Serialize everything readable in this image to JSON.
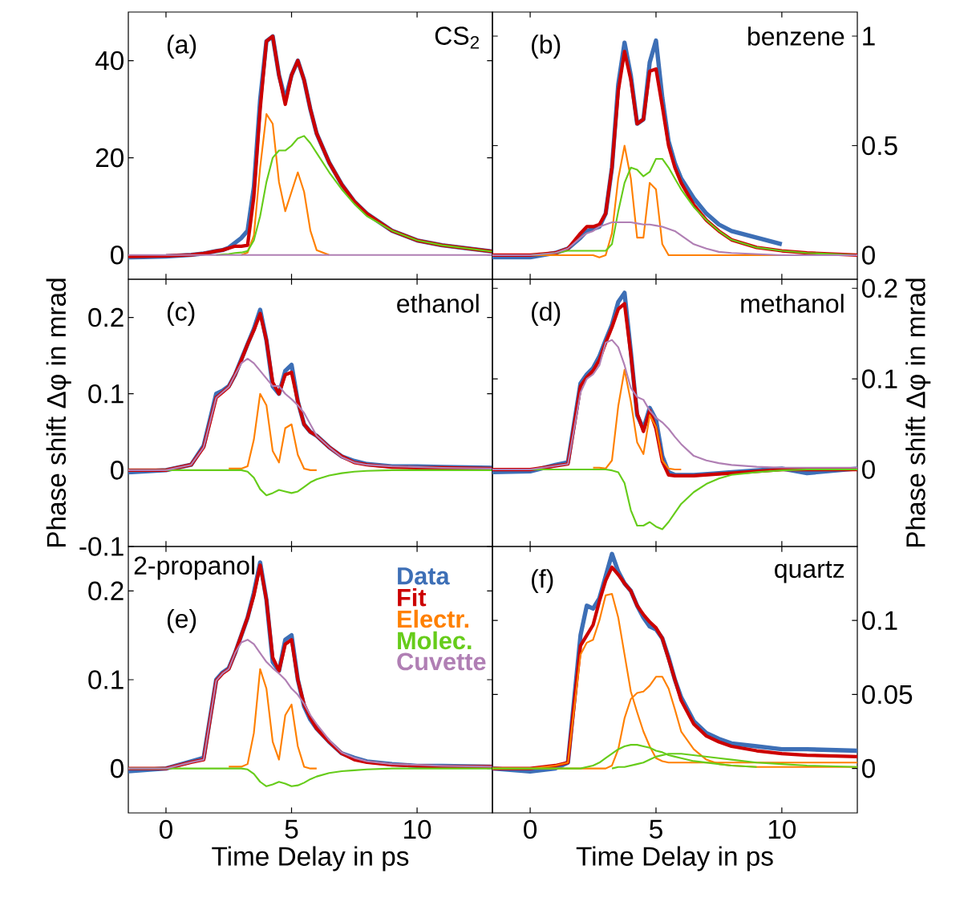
{
  "chart_data": [
    {
      "type": "line",
      "annotations": [
        "(a)",
        "CS$_{2}$"
      ],
      "x": [
        -1.5,
        0,
        1,
        1.5,
        2,
        2.25,
        2.5,
        2.75,
        3,
        3.25,
        3.5,
        3.75,
        4,
        4.25,
        4.5,
        4.75,
        5,
        5.25,
        5.5,
        5.75,
        6,
        6.5,
        7,
        7.5,
        8,
        9,
        10,
        11,
        13
      ],
      "xlim": [
        -1.5,
        13
      ],
      "xticks": [
        0,
        5,
        10
      ],
      "ylim": [
        -5,
        50
      ],
      "yticks": [
        0,
        20,
        40
      ],
      "tick_labels": "y",
      "series": [
        {
          "color": "#3d6fb6",
          "values": [
            -0.5,
            -0.3,
            0,
            0.3,
            0.8,
            1,
            1.5,
            2.5,
            3.5,
            5,
            14,
            32,
            44,
            45,
            37,
            32,
            37,
            40,
            36,
            30,
            25,
            19,
            14.5,
            11,
            8.5,
            5,
            3,
            2,
            0.7
          ]
        },
        {
          "color": "#cc0000",
          "values": [
            -0.3,
            -0.2,
            0,
            0.3,
            0.8,
            1,
            1.4,
            1.8,
            1.8,
            2,
            12,
            30,
            44,
            45,
            37,
            31,
            37,
            40,
            36,
            30,
            25,
            19,
            14.5,
            11,
            8.5,
            5,
            3,
            2,
            0.7
          ]
        },
        {
          "color": "#ff8000",
          "values": [
            null,
            null,
            null,
            null,
            null,
            null,
            null,
            null,
            0,
            0.5,
            4,
            18,
            29,
            27,
            15,
            9,
            13,
            17,
            13,
            5,
            1,
            0,
            null,
            null,
            null,
            null,
            null,
            null,
            null
          ]
        },
        {
          "color": "#66cc1a",
          "values": [
            null,
            null,
            null,
            null,
            0,
            0.1,
            0.2,
            0.4,
            0.5,
            0.8,
            3,
            8,
            15,
            20,
            21.5,
            21.5,
            22.5,
            24,
            24.5,
            23,
            21,
            17,
            13.5,
            10.5,
            8,
            5,
            3,
            2,
            0.7
          ]
        },
        {
          "color": "#b07fb4",
          "values": [
            0,
            0,
            0,
            0,
            0,
            0,
            0,
            0,
            0,
            0,
            0,
            0,
            0,
            0,
            0,
            0,
            0,
            0,
            0,
            0,
            0,
            0,
            0,
            0,
            0,
            0,
            0,
            0,
            0
          ]
        }
      ]
    },
    {
      "type": "line",
      "annotations": [
        "(b)",
        "benzene"
      ],
      "x": [
        -1.5,
        0,
        1,
        1.5,
        2,
        2.25,
        2.5,
        2.75,
        3,
        3.25,
        3.5,
        3.75,
        4,
        4.25,
        4.5,
        4.75,
        5,
        5.25,
        5.5,
        5.75,
        6,
        6.5,
        7,
        7.5,
        8,
        9,
        10,
        11,
        13
      ],
      "xlim": [
        -1.5,
        13
      ],
      "xticks": [
        0,
        5,
        10
      ],
      "ylim": [
        -0.11,
        1.11
      ],
      "yticks": [
        0,
        0.5,
        1
      ],
      "tick_labels": "y",
      "series": [
        {
          "color": "#3d6fb6",
          "values": [
            -0.01,
            -0.01,
            0.01,
            0.03,
            0.08,
            0.11,
            0.12,
            0.13,
            0.19,
            0.4,
            0.78,
            0.97,
            0.82,
            0.6,
            0.62,
            0.88,
            0.98,
            0.72,
            0.52,
            0.42,
            0.35,
            0.26,
            0.19,
            0.14,
            0.11,
            0.08,
            0.05,
            null,
            null
          ]
        },
        {
          "color": "#cc0000",
          "values": [
            0,
            0,
            0.01,
            0.03,
            0.1,
            0.13,
            0.13,
            0.14,
            0.19,
            0.4,
            0.75,
            0.93,
            0.8,
            0.6,
            0.62,
            0.84,
            0.85,
            0.68,
            0.5,
            0.4,
            0.33,
            0.23,
            0.16,
            0.11,
            0.07,
            0.035,
            0.02,
            0.01,
            0
          ]
        },
        {
          "color": "#ff8000",
          "values": [
            0,
            0,
            0,
            0,
            0,
            0,
            0,
            -0.01,
            0,
            0.1,
            0.35,
            0.5,
            0.35,
            0.08,
            0.08,
            0.33,
            0.3,
            0.05,
            0,
            0,
            0,
            0,
            0,
            0,
            0,
            0,
            0,
            0,
            0
          ]
        },
        {
          "color": "#66cc1a",
          "values": [
            0,
            0,
            0.01,
            0.02,
            0.02,
            0.02,
            0.02,
            0.02,
            0.02,
            0.05,
            0.2,
            0.33,
            0.4,
            0.39,
            0.36,
            0.38,
            0.44,
            0.44,
            0.4,
            0.35,
            0.3,
            0.22,
            0.16,
            0.11,
            0.07,
            0.035,
            0.02,
            0.01,
            0
          ]
        },
        {
          "color": "#b07fb4",
          "values": [
            0,
            0,
            0.01,
            0.03,
            0.08,
            0.1,
            0.11,
            0.13,
            0.14,
            0.15,
            0.15,
            0.15,
            0.15,
            0.145,
            0.14,
            0.14,
            0.135,
            0.13,
            0.12,
            0.11,
            0.09,
            0.05,
            0.03,
            0.015,
            0.01,
            0.005,
            0,
            0,
            0
          ]
        }
      ]
    },
    {
      "type": "line",
      "annotations": [
        "(c)",
        "ethanol"
      ],
      "ylabel": "Phase shift Δφ in mrad",
      "x": [
        -1.5,
        0,
        1,
        1.5,
        2,
        2.25,
        2.5,
        2.75,
        3,
        3.25,
        3.5,
        3.75,
        4,
        4.25,
        4.5,
        4.75,
        5,
        5.25,
        5.5,
        5.75,
        6,
        6.5,
        7,
        7.5,
        8,
        9,
        10,
        11,
        13
      ],
      "xlim": [
        -1.5,
        13
      ],
      "xticks": [
        0,
        5,
        10
      ],
      "ylim": [
        -0.1,
        0.25
      ],
      "yticks": [
        -0.1,
        0,
        0.1,
        0.2
      ],
      "tick_labels": "y",
      "series": [
        {
          "color": "#3d6fb6",
          "values": [
            -0.003,
            0,
            0.007,
            0.032,
            0.1,
            0.104,
            0.11,
            0.125,
            0.145,
            0.165,
            0.185,
            0.21,
            0.17,
            0.11,
            0.1,
            0.13,
            0.138,
            0.09,
            0.06,
            0.05,
            0.045,
            0.03,
            0.018,
            0.012,
            0.008,
            0.005,
            0.005,
            0.004,
            0.003
          ]
        },
        {
          "color": "#cc0000",
          "values": [
            0,
            0,
            0.007,
            0.03,
            0.095,
            0.102,
            0.109,
            0.125,
            0.144,
            0.165,
            0.183,
            0.205,
            0.17,
            0.115,
            0.1,
            0.125,
            0.128,
            0.09,
            0.06,
            0.05,
            0.045,
            0.03,
            0.018,
            0.01,
            0.007,
            0.004,
            0.003,
            0.003,
            0.002
          ]
        },
        {
          "color": "#ff8000",
          "values": [
            null,
            null,
            null,
            null,
            null,
            null,
            0.002,
            0.002,
            0.002,
            0.005,
            0.04,
            0.1,
            0.085,
            0.025,
            0.01,
            0.055,
            0.06,
            0.02,
            0.002,
            0,
            0,
            null,
            null,
            null,
            null,
            null,
            null,
            null,
            null
          ]
        },
        {
          "color": "#66cc1a",
          "values": [
            0,
            0,
            0,
            0,
            0,
            0,
            0,
            0,
            0,
            -0.002,
            -0.01,
            -0.025,
            -0.033,
            -0.03,
            -0.026,
            -0.028,
            -0.03,
            -0.028,
            -0.022,
            -0.016,
            -0.012,
            -0.007,
            -0.004,
            -0.002,
            -0.001,
            0,
            0,
            0,
            0
          ]
        },
        {
          "color": "#b07fb4",
          "values": [
            0,
            0,
            0.007,
            0.03,
            0.095,
            0.102,
            0.109,
            0.125,
            0.14,
            0.146,
            0.14,
            0.13,
            0.12,
            0.11,
            0.11,
            0.1,
            0.093,
            0.085,
            0.075,
            0.06,
            0.045,
            0.03,
            0.017,
            0.01,
            0.007,
            0.005,
            0.004,
            0.003,
            0.002
          ]
        }
      ]
    },
    {
      "type": "line",
      "annotations": [
        "(d)",
        "methanol"
      ],
      "ylabel": "Phase shift Δφ in mrad",
      "x": [
        -1.5,
        0,
        1,
        1.5,
        2,
        2.25,
        2.5,
        2.75,
        3,
        3.25,
        3.5,
        3.75,
        4,
        4.25,
        4.5,
        4.75,
        5,
        5.25,
        5.5,
        5.75,
        6,
        6.5,
        7,
        7.5,
        8,
        9,
        10,
        11,
        13
      ],
      "xlim": [
        -1.5,
        13
      ],
      "xticks": [
        0,
        5,
        10
      ],
      "ylim": [
        -0.085,
        0.21
      ],
      "yticks": [
        0,
        0.1,
        0.2
      ],
      "tick_labels": "y",
      "series": [
        {
          "color": "#3d6fb6",
          "values": [
            -0.003,
            -0.002,
            0.005,
            0.008,
            0.095,
            0.105,
            0.112,
            0.125,
            0.143,
            0.16,
            0.185,
            0.195,
            0.13,
            0.06,
            0.045,
            0.068,
            0.055,
            0.015,
            -0.003,
            -0.006,
            -0.006,
            -0.006,
            -0.005,
            -0.004,
            -0.003,
            -0.001,
            0.001,
            -0.004,
            0.001
          ]
        },
        {
          "color": "#cc0000",
          "values": [
            0,
            0,
            0.004,
            0.006,
            0.092,
            0.102,
            0.109,
            0.121,
            0.14,
            0.157,
            0.177,
            0.183,
            0.127,
            0.062,
            0.042,
            0.065,
            0.045,
            0.009,
            -0.006,
            -0.007,
            -0.007,
            -0.007,
            -0.006,
            -0.005,
            -0.004,
            -0.002,
            0,
            0,
            0
          ]
        },
        {
          "color": "#ff8000",
          "values": [
            null,
            null,
            null,
            null,
            null,
            null,
            0.002,
            0.002,
            0.001,
            0.01,
            0.07,
            0.11,
            0.075,
            0.03,
            0.017,
            0.06,
            0.047,
            0.01,
            0.001,
            0,
            0,
            null,
            null,
            null,
            null,
            null,
            null,
            null,
            null
          ]
        },
        {
          "color": "#66cc1a",
          "values": [
            0,
            0,
            0,
            0,
            0,
            0,
            0,
            0,
            0,
            -0.001,
            -0.003,
            -0.015,
            -0.045,
            -0.062,
            -0.062,
            -0.058,
            -0.063,
            -0.066,
            -0.058,
            -0.048,
            -0.038,
            -0.025,
            -0.016,
            -0.01,
            -0.006,
            -0.003,
            -0.001,
            0,
            0
          ]
        },
        {
          "color": "#b07fb4",
          "values": [
            0,
            0,
            0.004,
            0.006,
            0.085,
            0.1,
            0.105,
            0.115,
            0.14,
            0.143,
            0.135,
            0.115,
            0.09,
            0.08,
            0.077,
            0.065,
            0.057,
            0.052,
            0.045,
            0.036,
            0.028,
            0.015,
            0.01,
            0.007,
            0.005,
            0.003,
            0.002,
            0.002,
            0.002
          ]
        }
      ]
    },
    {
      "type": "line",
      "annotations": [
        "2-propanol",
        "(e)"
      ],
      "xlabel": "Time Delay in ps",
      "legend": "top right",
      "x": [
        -1.5,
        0,
        1,
        1.5,
        2,
        2.25,
        2.5,
        2.75,
        3,
        3.25,
        3.5,
        3.75,
        4,
        4.25,
        4.5,
        4.75,
        5,
        5.25,
        5.5,
        5.75,
        6,
        6.5,
        7,
        7.5,
        8,
        9,
        10,
        11,
        13
      ],
      "xlim": [
        -1.5,
        13
      ],
      "xticks": [
        0,
        5,
        10
      ],
      "ylim": [
        -0.05,
        0.25
      ],
      "yticks": [
        0,
        0.1,
        0.2
      ],
      "series": [
        {
          "name": "Data",
          "color": "#3d6fb6",
          "values": [
            -0.003,
            0,
            0.008,
            0.012,
            0.1,
            0.108,
            0.113,
            0.13,
            0.15,
            0.17,
            0.198,
            0.232,
            0.19,
            0.12,
            0.11,
            0.145,
            0.15,
            0.1,
            0.07,
            0.055,
            0.045,
            0.03,
            0.017,
            0.012,
            0.008,
            0.005,
            0.003,
            0.003,
            0.002
          ]
        },
        {
          "name": "Fit",
          "color": "#cc0000",
          "values": [
            0,
            0,
            0.007,
            0.01,
            0.099,
            0.107,
            0.112,
            0.13,
            0.15,
            0.17,
            0.195,
            0.229,
            0.19,
            0.125,
            0.11,
            0.14,
            0.145,
            0.1,
            0.072,
            0.057,
            0.045,
            0.03,
            0.017,
            0.01,
            0.007,
            0.004,
            0.003,
            0.002,
            0.002
          ]
        },
        {
          "name": "Electr.",
          "color": "#ff8000",
          "values": [
            null,
            null,
            null,
            null,
            null,
            null,
            0.002,
            0.002,
            0.002,
            0.005,
            0.04,
            0.112,
            0.09,
            0.03,
            0.01,
            0.06,
            0.072,
            0.025,
            0.002,
            0,
            0,
            null,
            null,
            null,
            null,
            null,
            null,
            null,
            null
          ]
        },
        {
          "name": "Molec.",
          "color": "#66cc1a",
          "values": [
            0,
            0,
            0,
            0,
            0,
            0,
            0,
            0,
            0,
            -0.001,
            -0.006,
            -0.015,
            -0.02,
            -0.018,
            -0.015,
            -0.017,
            -0.02,
            -0.019,
            -0.016,
            -0.012,
            -0.009,
            -0.005,
            -0.003,
            -0.002,
            -0.001,
            0,
            0,
            0,
            0
          ]
        },
        {
          "name": "Cuvette",
          "color": "#b07fb4",
          "values": [
            0,
            0,
            0.007,
            0.01,
            0.099,
            0.107,
            0.112,
            0.13,
            0.142,
            0.145,
            0.14,
            0.13,
            0.12,
            0.113,
            0.107,
            0.1,
            0.09,
            0.083,
            0.073,
            0.06,
            0.05,
            0.032,
            0.018,
            0.012,
            0.008,
            0.005,
            0.004,
            0.003,
            0.002
          ]
        }
      ]
    },
    {
      "type": "line",
      "annotations": [
        "(f)",
        "quartz"
      ],
      "xlabel": "Time Delay in ps",
      "x": [
        -1.5,
        0,
        1,
        1.5,
        2,
        2.25,
        2.5,
        2.75,
        3,
        3.25,
        3.5,
        3.75,
        4,
        4.25,
        4.5,
        4.75,
        5,
        5.25,
        5.5,
        5.75,
        6,
        6.5,
        7,
        7.5,
        8,
        9,
        10,
        11,
        13
      ],
      "xlim": [
        -1.5,
        13
      ],
      "xticks": [
        0,
        5,
        10
      ],
      "ylim": [
        -0.03,
        0.15
      ],
      "yticks": [
        0,
        0.05,
        0.1
      ],
      "series": [
        {
          "color": "#3d6fb6",
          "values": [
            0,
            -0.002,
            0,
            0.004,
            0.09,
            0.11,
            0.108,
            0.115,
            0.13,
            0.145,
            0.133,
            0.125,
            0.12,
            0.11,
            0.102,
            0.096,
            0.094,
            0.088,
            0.075,
            0.06,
            0.048,
            0.032,
            0.024,
            0.02,
            0.017,
            0.015,
            0.013,
            0.013,
            0.012
          ]
        },
        {
          "color": "#cc0000",
          "values": [
            0,
            0,
            0.002,
            0.004,
            0.083,
            0.09,
            0.097,
            0.113,
            0.127,
            0.136,
            0.131,
            0.125,
            0.12,
            0.11,
            0.104,
            0.099,
            0.095,
            0.088,
            0.074,
            0.06,
            0.046,
            0.03,
            0.022,
            0.018,
            0.015,
            0.012,
            0.01,
            0.009,
            0.008
          ]
        },
        {
          "color": "#ff8000",
          "values": [
            0,
            0,
            0.002,
            0.004,
            0.077,
            0.085,
            0.087,
            0.1,
            0.117,
            0.118,
            0.102,
            0.077,
            0.052,
            0.038,
            0.025,
            0.015,
            0.007,
            0.005,
            0.004,
            0.004,
            0.004,
            0.004,
            0.004,
            0.004,
            0.004,
            0.004,
            0.004,
            0.004,
            0.004
          ]
        },
        {
          "color": "#ff8000",
          "values": [
            0,
            0,
            0,
            0,
            0,
            0,
            0,
            0,
            0,
            0.002,
            0.013,
            0.034,
            0.047,
            0.051,
            0.052,
            0.056,
            0.062,
            0.062,
            0.054,
            0.04,
            0.025,
            0.013,
            0.006,
            0.003,
            0.002,
            0.001,
            0.001,
            0.001,
            0.001
          ]
        },
        {
          "color": "#66cc1a",
          "values": [
            0,
            0,
            0,
            0,
            0,
            0.001,
            0.002,
            0.004,
            0.007,
            0.01,
            0.013,
            0.015,
            0.016,
            0.016,
            0.015,
            0.014,
            0.012,
            0.011,
            0.009,
            0.008,
            0.007,
            0.005,
            0.004,
            0.003,
            0.002,
            0.001,
            null,
            null,
            null
          ]
        },
        {
          "color": "#66cc1a",
          "values": [
            null,
            null,
            null,
            null,
            null,
            null,
            null,
            null,
            null,
            0,
            0.001,
            0.001,
            0.002,
            0.003,
            0.004,
            0.006,
            0.008,
            0.009,
            0.01,
            0.01,
            0.01,
            0.009,
            0.008,
            0.007,
            0.006,
            0.004,
            0.003,
            0.002,
            0.001
          ]
        }
      ]
    }
  ]
}
